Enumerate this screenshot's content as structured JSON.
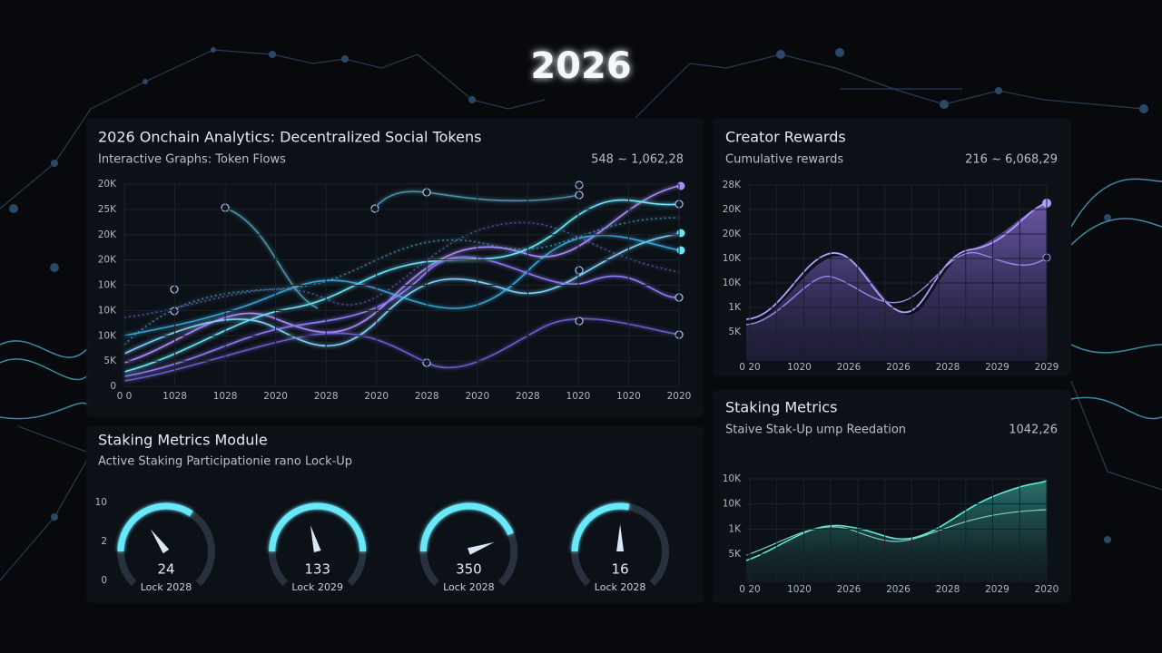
{
  "header": {
    "title": "2026"
  },
  "panels": [
    {
      "title": "2026 Onchain Analytics: Decentralized Social Tokens",
      "subtitle": "Interactive Graphs: Token Flows",
      "range": "548 ~ 1,062,28",
      "y_labels": [
        "20K",
        "25K",
        "20K",
        "20K",
        "10K",
        "10K",
        "10K",
        "5K",
        "0"
      ],
      "x_labels": [
        "0 0",
        "1028",
        "1028",
        "2020",
        "2028",
        "2020",
        "2028",
        "2020",
        "2028",
        "1020",
        "1020",
        "2020"
      ]
    },
    {
      "title": "Creator Rewards",
      "subtitle": "Cumulative rewards",
      "range": "216 ~ 6,068,29",
      "y_labels": [
        "28K",
        "20K",
        "20K",
        "10K",
        "10K",
        "1K",
        "5K"
      ],
      "x_labels": [
        "0 20",
        "1020",
        "2026",
        "2026",
        "2028",
        "2029",
        "2029"
      ]
    },
    {
      "title": "Staking Metrics",
      "subtitle": "Staive Stak-Up ump Reedation",
      "range": "1042,26",
      "y_labels": [
        "10K",
        "10K",
        "1K",
        "5K"
      ],
      "x_labels": [
        "0 20",
        "1020",
        "2026",
        "2026",
        "2028",
        "2029",
        "2020"
      ]
    }
  ],
  "gauges": {
    "title": "Staking Metrics Module",
    "subtitle": "Active Staking Participationie rano Lock-Up",
    "y_labels": [
      "10",
      "2",
      "0"
    ],
    "items": [
      {
        "value": "24",
        "label": "Lock 2028"
      },
      {
        "value": "133",
        "label": "Lock 2029"
      },
      {
        "value": "350",
        "label": "Lock 2028"
      },
      {
        "value": "16",
        "label": "Lock 2028"
      }
    ]
  }
}
